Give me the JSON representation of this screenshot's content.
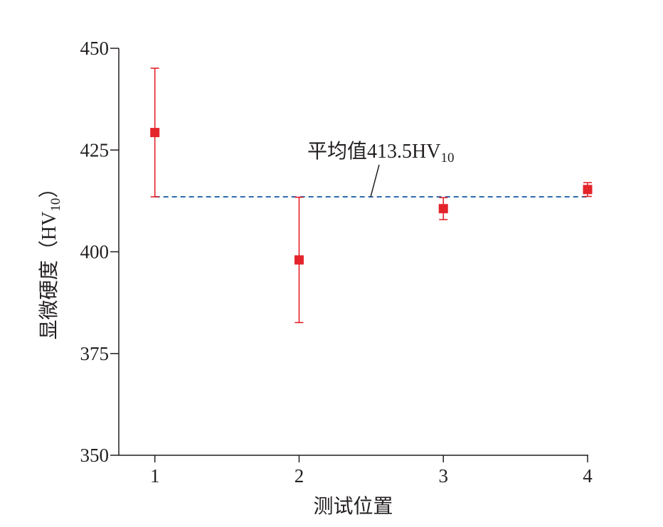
{
  "chart_data": {
    "type": "errorbar",
    "xlabel": "测试位置",
    "ylabel": [
      "显微硬度（HV",
      "10",
      "）"
    ],
    "x": [
      1,
      2,
      3,
      4
    ],
    "values": [
      429.3,
      398.0,
      410.6,
      415.3
    ],
    "errors": [
      15.8,
      15.4,
      2.7,
      1.7
    ],
    "color": "#e3242b",
    "mean_line": {
      "value": 413.5,
      "label": [
        "平均值413.5HV",
        "10"
      ],
      "color": "#2a66a8"
    },
    "xlim": [
      0.75,
      4
    ],
    "xticks": [
      1,
      2,
      3,
      4
    ],
    "ylim": [
      350,
      450
    ],
    "yticks": [
      350,
      375,
      400,
      425,
      450
    ]
  }
}
